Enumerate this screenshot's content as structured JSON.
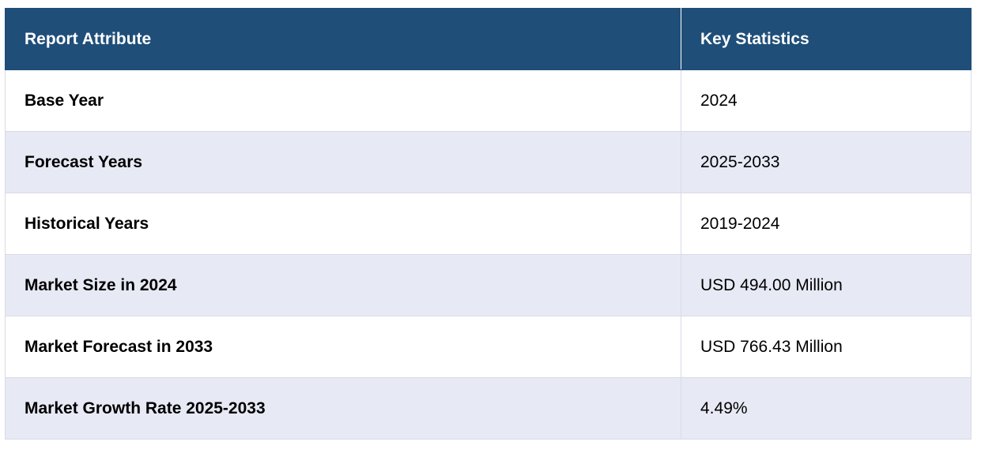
{
  "table": {
    "headers": [
      "Report Attribute",
      "Key Statistics"
    ],
    "rows": [
      [
        "Base Year",
        "2024"
      ],
      [
        "Forecast Years",
        "2025-2033"
      ],
      [
        "Historical Years",
        "2019-2024"
      ],
      [
        "Market Size in 2024",
        "USD 494.00 Million"
      ],
      [
        "Market Forecast in 2033",
        "USD 766.43 Million"
      ],
      [
        "Market Growth Rate 2025-2033",
        "4.49%"
      ]
    ]
  },
  "colors": {
    "header_bg": "#1f4e79",
    "header_text": "#ffffff",
    "stripe": "#e7e9f5",
    "border": "#d8dbe6"
  }
}
